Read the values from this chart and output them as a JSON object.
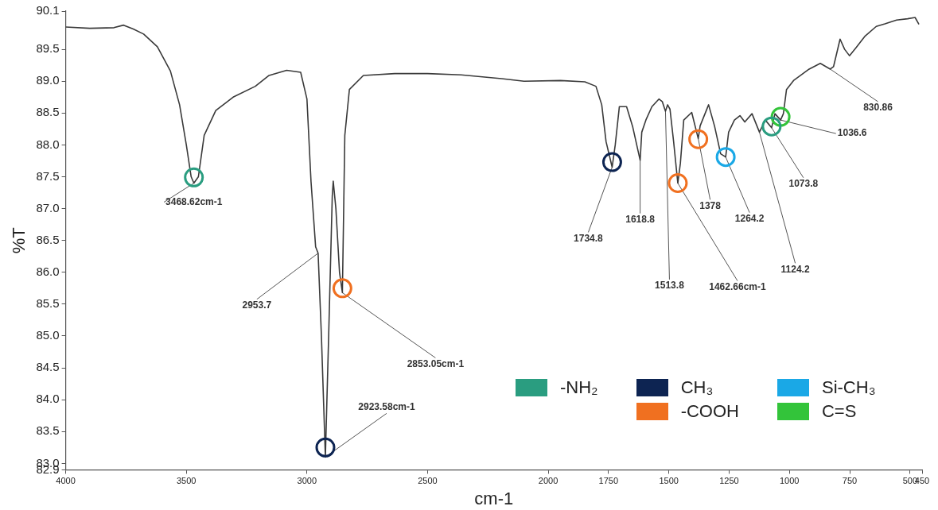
{
  "chart_data": {
    "type": "line",
    "xlabel": "cm-1",
    "ylabel": "%T",
    "xlim": [
      4000,
      450
    ],
    "xticks": [
      4000,
      3500,
      3000,
      2500,
      2000,
      1750,
      1500,
      1250,
      1000,
      750,
      500,
      450
    ],
    "ylim": [
      82.9,
      90.1
    ],
    "yticks": [
      82.9,
      {
        "value": 83,
        "label": "83.0"
      },
      83.5,
      {
        "value": 84,
        "label": "84.0"
      },
      84.5,
      {
        "value": 85,
        "label": "85.0"
      },
      85.5,
      {
        "value": 86,
        "label": "86.0"
      },
      86.5,
      {
        "value": 87,
        "label": "87.0"
      },
      87.5,
      {
        "value": 88,
        "label": "88.0"
      },
      88.5,
      {
        "value": 89,
        "label": "89.0"
      },
      89.5,
      90.1
    ],
    "grid": false,
    "legend": "bottom right",
    "marker": "none",
    "line_style": "solid",
    "series": [
      {
        "color": "#3a3a3a",
        "x": [
          4000,
          3900,
          3800,
          3760,
          3720,
          3677,
          3620,
          3566,
          3528,
          3500,
          3480,
          3468.62,
          3450,
          3426,
          3378,
          3306,
          3214,
          3157,
          3084,
          3026,
          3000,
          2983,
          2964,
          2953.7,
          2940,
          2923.58,
          2910,
          2895,
          2891,
          2880,
          2865,
          2853.05,
          2843,
          2824,
          2766,
          2636,
          2500,
          2361,
          2193,
          2100,
          1949,
          1848,
          1802,
          1778,
          1760,
          1734.8,
          1722,
          1705,
          1675,
          1650,
          1618.8,
          1612,
          1595,
          1570,
          1541,
          1527,
          1513.8,
          1505,
          1495,
          1480,
          1462.66,
          1452,
          1438,
          1405,
          1378,
          1370,
          1335,
          1310,
          1285,
          1264.2,
          1252,
          1228,
          1205,
          1185,
          1155,
          1124.2,
          1100,
          1073.8,
          1060,
          1036.6,
          1025,
          1012,
          983,
          918,
          872,
          830.86,
          817,
          790,
          771,
          751,
          725,
          686,
          640,
          604,
          556,
          510,
          479,
          464
        ],
        "values": [
          89.85,
          89.83,
          89.84,
          89.88,
          89.82,
          89.74,
          89.54,
          89.16,
          88.63,
          88.0,
          87.5,
          87.4,
          87.5,
          88.15,
          88.54,
          88.75,
          88.92,
          89.09,
          89.17,
          89.14,
          88.72,
          87.42,
          86.4,
          86.3,
          85.0,
          83.1,
          85.0,
          87.2,
          87.43,
          87.0,
          86.0,
          85.68,
          88.15,
          88.87,
          89.09,
          89.12,
          89.12,
          89.1,
          89.04,
          89.0,
          89.01,
          88.99,
          88.92,
          88.63,
          88.05,
          87.65,
          88.0,
          88.6,
          88.6,
          88.29,
          87.76,
          88.2,
          88.39,
          88.6,
          88.72,
          88.68,
          88.53,
          88.63,
          88.56,
          88.05,
          87.4,
          87.71,
          88.39,
          88.51,
          88.1,
          88.3,
          88.63,
          88.29,
          87.86,
          87.81,
          88.2,
          88.39,
          88.46,
          88.36,
          88.49,
          88.2,
          88.39,
          88.27,
          88.49,
          88.39,
          88.49,
          88.87,
          89.01,
          89.19,
          89.28,
          89.19,
          89.23,
          89.66,
          89.5,
          89.4,
          89.52,
          89.71,
          89.86,
          89.9,
          89.96,
          89.98,
          90.0,
          89.9
        ]
      },
      {
        "type": "scatter",
        "name": "-NH₂",
        "color": "#2a9d80",
        "marker": "circle",
        "x": [
          3468.62,
          1073.8
        ],
        "values": [
          87.49,
          88.29
        ]
      },
      {
        "type": "scatter",
        "name": "CH₃",
        "color": "#0d2452",
        "marker": "circle",
        "x": [
          2923.58,
          1734.8
        ],
        "values": [
          83.25,
          87.73
        ]
      },
      {
        "type": "scatter",
        "name": "-COOH",
        "color": "#f07020",
        "marker": "circle",
        "x": [
          2853.05,
          1462.66,
          1378
        ],
        "values": [
          85.75,
          87.4,
          88.09
        ]
      },
      {
        "type": "scatter",
        "name": "Si-CH₃",
        "color": "#1aa8e6",
        "marker": "circle",
        "x": [
          1264.2
        ],
        "values": [
          87.81
        ]
      },
      {
        "type": "scatter",
        "name": "C=S",
        "color": "#33c43a",
        "marker": "circle",
        "x": [
          1036.6
        ],
        "values": [
          88.44
        ]
      }
    ],
    "annotations": [
      {
        "text": "3468.62cm-1",
        "x": 3468.62,
        "y": 87.4
      },
      {
        "text": "2953.7",
        "x": 2953.7,
        "y": 86.3
      },
      {
        "text": "2853.05cm-1",
        "x": 2853.05,
        "y": 85.68
      },
      {
        "text": "2923.58cm-1",
        "x": 2923.58,
        "y": 83.1
      },
      {
        "text": "1734.8",
        "x": 1734.8,
        "y": 87.65
      },
      {
        "text": "1618.8",
        "x": 1618.8,
        "y": 87.76
      },
      {
        "text": "1513.8",
        "x": 1513.8,
        "y": 88.53
      },
      {
        "text": "1462.66cm-1",
        "x": 1462.66,
        "y": 87.4
      },
      {
        "text": "1378",
        "x": 1378,
        "y": 88.1
      },
      {
        "text": "1264.2",
        "x": 1264.2,
        "y": 87.81
      },
      {
        "text": "1124.2",
        "x": 1124.2,
        "y": 88.2
      },
      {
        "text": "1073.8",
        "x": 1073.8,
        "y": 88.27
      },
      {
        "text": "1036.6",
        "x": 1036.6,
        "y": 88.39
      },
      {
        "text": "830.86",
        "x": 830.86,
        "y": 89.19
      }
    ]
  }
}
